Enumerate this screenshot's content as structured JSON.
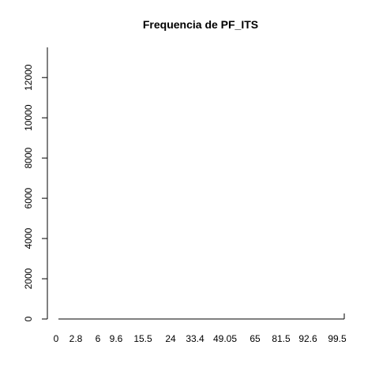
{
  "chart_data": {
    "type": "bar",
    "title": "Frequencia de PF_ITS",
    "xlabel": "",
    "ylabel": "",
    "categories": [
      "0",
      "2.8",
      "6",
      "9.6",
      "15.5",
      "24",
      "33.4",
      "49.05",
      "65",
      "81.5",
      "92.6",
      "99.5"
    ],
    "x_tick_labels": [
      "0",
      "2.8",
      "6",
      "9.6",
      "15.5",
      "24",
      "33.4",
      "49.05",
      "65",
      "81.5",
      "92.6",
      "99.5"
    ],
    "y_ticks": [
      0,
      2000,
      4000,
      6000,
      8000,
      10000,
      12000
    ],
    "y_tick_labels": [
      "0",
      "2000",
      "4000",
      "6000",
      "8000",
      "10000",
      "12000"
    ],
    "ylim": [
      0,
      13500
    ],
    "grid": false,
    "legend": "none",
    "colors": {
      "axis": "#000000",
      "text": "#000000",
      "background": "#ffffff"
    }
  }
}
